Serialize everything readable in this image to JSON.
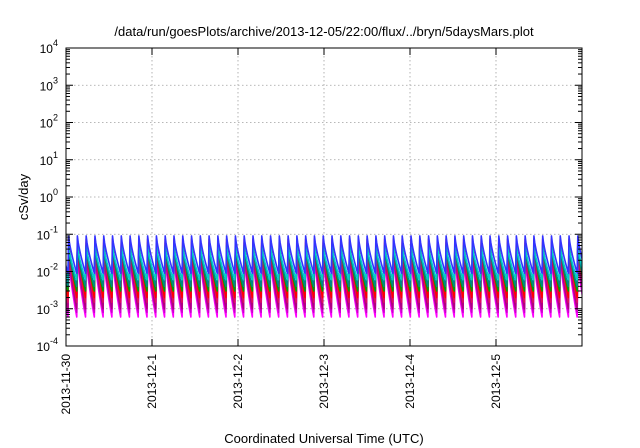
{
  "chart_data": {
    "type": "line",
    "title": "/data/run/goesPlots/archive/2013-12-05/22:00/flux/../bryn/5daysMars.plot",
    "xlabel": "Coordinated Universal Time (UTC)",
    "ylabel": "cSv/day",
    "y_scale": "log",
    "ylim": [
      0.0001,
      10000
    ],
    "x_range": [
      "2013-11-30 00:00",
      "2013-12-06 00:00"
    ],
    "x_tick_labels": [
      "2013-11-30",
      "2013-12-1",
      "2013-12-2",
      "2013-12-3",
      "2013-12-4",
      "2013-12-5"
    ],
    "y_ticks": [
      {
        "value": 0.0001,
        "base": "10",
        "exp": "-4"
      },
      {
        "value": 0.001,
        "base": "10",
        "exp": "-3"
      },
      {
        "value": 0.01,
        "base": "10",
        "exp": "-2"
      },
      {
        "value": 0.1,
        "base": "10",
        "exp": "-1"
      },
      {
        "value": 1,
        "base": "10",
        "exp": "0"
      },
      {
        "value": 10,
        "base": "10",
        "exp": "1"
      },
      {
        "value": 100,
        "base": "10",
        "exp": "2"
      },
      {
        "value": 1000,
        "base": "10",
        "exp": "3"
      },
      {
        "value": 10000,
        "base": "10",
        "exp": "4"
      }
    ],
    "grid": true,
    "legend": "none",
    "cycle_period_hours": 2.45,
    "series": [
      {
        "color": "#ff00ff",
        "peak": 0.025,
        "trough": 0.0006
      },
      {
        "color": "#cc00cc",
        "peak": 0.03,
        "trough": 0.0008
      },
      {
        "color": "#b00080",
        "peak": 0.04,
        "trough": 0.001
      },
      {
        "color": "#e01060",
        "peak": 0.06,
        "trough": 0.0015
      },
      {
        "color": "#ff0000",
        "peak": 0.075,
        "trough": 0.002
      },
      {
        "color": "#00a000",
        "peak": 0.05,
        "trough": 0.003
      },
      {
        "color": "#008888",
        "peak": 0.045,
        "trough": 0.004
      },
      {
        "color": "#00cccc",
        "peak": 0.05,
        "trough": 0.006
      },
      {
        "color": "#3333ff",
        "peak": 0.09,
        "trough": 0.009
      }
    ]
  }
}
